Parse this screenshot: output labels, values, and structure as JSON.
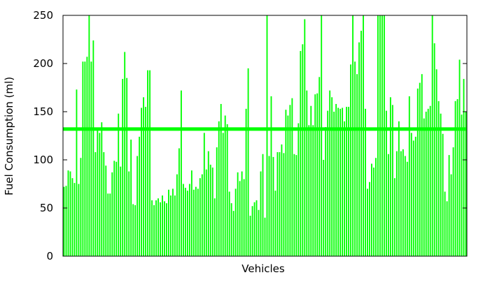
{
  "chart_data": {
    "type": "bar",
    "title": "",
    "xlabel": "Vehicles",
    "ylabel": "Fuel Consumption (ml)",
    "ylim": [
      0,
      250
    ],
    "yticks": [
      0,
      50,
      100,
      150,
      200,
      250
    ],
    "grid": false,
    "reference_line": 132,
    "bar_color": "#00ff00",
    "line_color": "#00ff00",
    "values": [
      72,
      73,
      89,
      88,
      81,
      76,
      173,
      75,
      102,
      202,
      202,
      207,
      250,
      202,
      224,
      108,
      131,
      128,
      139,
      108,
      94,
      65,
      65,
      87,
      99,
      98,
      148,
      93,
      184,
      212,
      185,
      88,
      121,
      54,
      53,
      104,
      124,
      154,
      165,
      155,
      193,
      193,
      58,
      53,
      58,
      60,
      56,
      63,
      57,
      55,
      69,
      63,
      70,
      63,
      85,
      112,
      172,
      75,
      71,
      68,
      75,
      89,
      69,
      72,
      70,
      81,
      85,
      128,
      90,
      109,
      95,
      92,
      60,
      113,
      140,
      158,
      128,
      146,
      137,
      67,
      55,
      47,
      70,
      87,
      78,
      88,
      80,
      153,
      195,
      42,
      52,
      56,
      58,
      48,
      88,
      106,
      40,
      250,
      104,
      166,
      103,
      68,
      108,
      108,
      116,
      107,
      152,
      146,
      157,
      164,
      106,
      105,
      138,
      213,
      220,
      246,
      172,
      136,
      156,
      136,
      168,
      169,
      186,
      250,
      100,
      134,
      151,
      172,
      165,
      150,
      158,
      154,
      153,
      154,
      140,
      155,
      155,
      199,
      250,
      202,
      189,
      222,
      234,
      250,
      153,
      70,
      77,
      96,
      92,
      102,
      250,
      250,
      250,
      250,
      151,
      106,
      165,
      157,
      81,
      109,
      140,
      109,
      111,
      104,
      98,
      166,
      128,
      120,
      124,
      174,
      180,
      189,
      143,
      150,
      153,
      156,
      250,
      221,
      194,
      161,
      148,
      127,
      67,
      57,
      105,
      85,
      113,
      161,
      163,
      204,
      147,
      184,
      150
    ]
  }
}
